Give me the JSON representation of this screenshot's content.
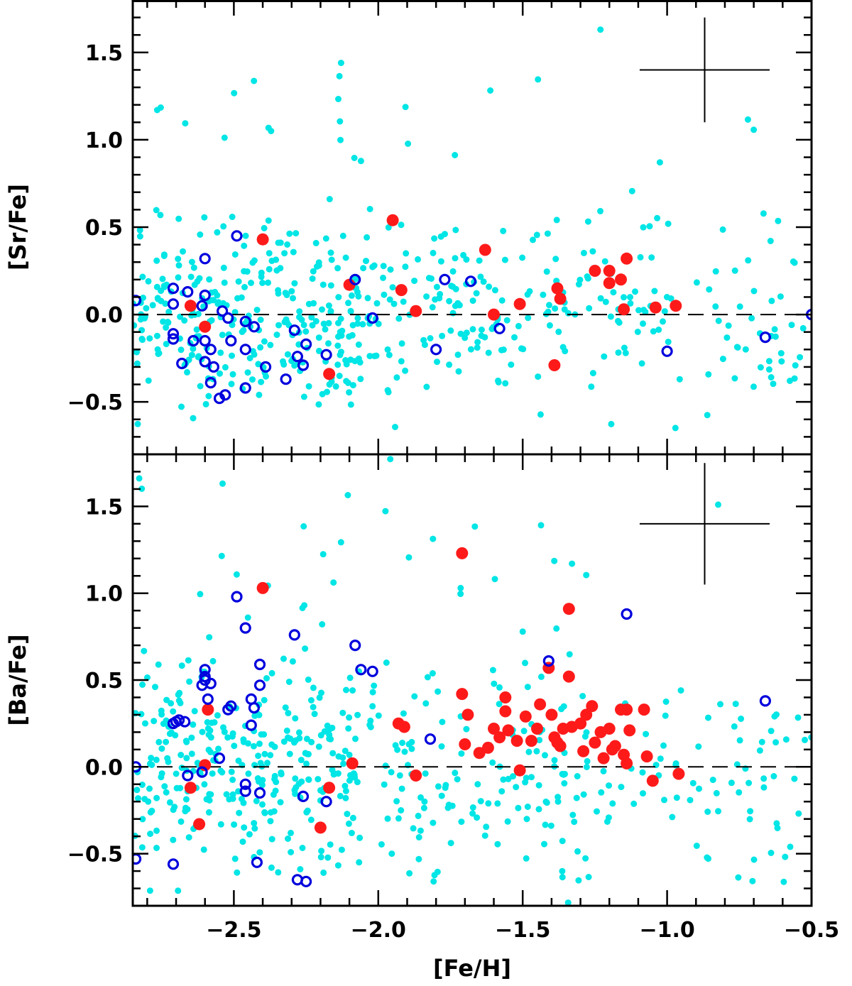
{
  "chart_data": {
    "type": "scatter",
    "colors": {
      "background": "#00e5e5",
      "red": "#ff1a1a",
      "blue": "#0000dd"
    },
    "xlabel": "[Fe/H]",
    "xlim": [
      -2.85,
      -0.5
    ],
    "xticks": [
      "−2.5",
      "−2.0",
      "−1.5",
      "−1.0",
      "−0.5"
    ],
    "xtick_values": [
      -2.5,
      -2.0,
      -1.5,
      -1.0,
      -0.5
    ],
    "panels": [
      {
        "ylabel": "[Sr/Fe]",
        "ylim": [
          -0.8,
          1.8
        ],
        "yticks": [
          "−0.5",
          "0.0",
          "0.5",
          "1.0",
          "1.5"
        ],
        "ytick_values": [
          -0.5,
          0.0,
          0.5,
          1.0,
          1.5
        ],
        "errorbar": {
          "x": -0.87,
          "y": 1.4,
          "xerr": 0.225,
          "yerr": 0.3
        },
        "series": [
          {
            "marker": "filled-red",
            "points": [
              [
                -2.65,
                0.05
              ],
              [
                -2.6,
                -0.07
              ],
              [
                -2.4,
                0.43
              ],
              [
                -2.17,
                -0.34
              ],
              [
                -2.1,
                0.17
              ],
              [
                -1.95,
                0.54
              ],
              [
                -1.92,
                0.14
              ],
              [
                -1.87,
                0.02
              ],
              [
                -1.63,
                0.37
              ],
              [
                -1.6,
                0.0
              ],
              [
                -1.51,
                0.06
              ],
              [
                -1.39,
                -0.29
              ],
              [
                -1.38,
                0.15
              ],
              [
                -1.37,
                0.09
              ],
              [
                -1.25,
                0.25
              ],
              [
                -1.2,
                0.25
              ],
              [
                -1.2,
                0.18
              ],
              [
                -1.16,
                0.2
              ],
              [
                -1.14,
                0.32
              ],
              [
                -1.15,
                0.03
              ],
              [
                -1.04,
                0.04
              ],
              [
                -0.97,
                0.05
              ]
            ]
          },
          {
            "marker": "open-blue",
            "points": [
              [
                -2.84,
                0.08
              ],
              [
                -2.71,
                0.15
              ],
              [
                -2.71,
                0.06
              ],
              [
                -2.71,
                -0.11
              ],
              [
                -2.71,
                -0.14
              ],
              [
                -2.68,
                -0.28
              ],
              [
                -2.66,
                0.13
              ],
              [
                -2.64,
                -0.15
              ],
              [
                -2.61,
                0.05
              ],
              [
                -2.6,
                0.32
              ],
              [
                -2.6,
                0.11
              ],
              [
                -2.6,
                -0.15
              ],
              [
                -2.6,
                -0.27
              ],
              [
                -2.58,
                -0.39
              ],
              [
                -2.58,
                -0.2
              ],
              [
                -2.57,
                -0.3
              ],
              [
                -2.55,
                -0.48
              ],
              [
                -2.54,
                0.02
              ],
              [
                -2.53,
                -0.46
              ],
              [
                -2.52,
                -0.02
              ],
              [
                -2.51,
                -0.15
              ],
              [
                -2.49,
                0.45
              ],
              [
                -2.46,
                -0.04
              ],
              [
                -2.46,
                -0.2
              ],
              [
                -2.46,
                -0.42
              ],
              [
                -2.43,
                -0.07
              ],
              [
                -2.39,
                -0.3
              ],
              [
                -2.32,
                -0.37
              ],
              [
                -2.29,
                -0.09
              ],
              [
                -2.28,
                -0.24
              ],
              [
                -2.26,
                -0.29
              ],
              [
                -2.25,
                -0.17
              ],
              [
                -2.18,
                -0.23
              ],
              [
                -2.08,
                0.2
              ],
              [
                -2.02,
                -0.02
              ],
              [
                -1.77,
                0.2
              ],
              [
                -1.8,
                -0.2
              ],
              [
                -1.68,
                0.19
              ],
              [
                -1.58,
                -0.08
              ],
              [
                -1.0,
                -0.21
              ],
              [
                -0.66,
                -0.13
              ],
              [
                -0.5,
                0.0
              ]
            ]
          }
        ]
      },
      {
        "ylabel": "[Ba/Fe]",
        "ylim": [
          -0.8,
          1.8
        ],
        "yticks": [
          "−0.5",
          "0.0",
          "0.5",
          "1.0",
          "1.5"
        ],
        "ytick_values": [
          -0.5,
          0.0,
          0.5,
          1.0,
          1.5
        ],
        "errorbar": {
          "x": -0.87,
          "y": 1.4,
          "xerr": 0.225,
          "yerr": 0.35
        },
        "series": [
          {
            "marker": "filled-red",
            "points": [
              [
                -2.65,
                -0.12
              ],
              [
                -2.62,
                -0.33
              ],
              [
                -2.6,
                0.01
              ],
              [
                -2.59,
                0.33
              ],
              [
                -2.4,
                1.03
              ],
              [
                -2.2,
                -0.35
              ],
              [
                -2.17,
                -0.12
              ],
              [
                -2.09,
                0.02
              ],
              [
                -1.93,
                0.25
              ],
              [
                -1.91,
                0.23
              ],
              [
                -1.87,
                -0.05
              ],
              [
                -1.71,
                1.23
              ],
              [
                -1.71,
                0.42
              ],
              [
                -1.7,
                0.13
              ],
              [
                -1.69,
                0.3
              ],
              [
                -1.65,
                0.08
              ],
              [
                -1.62,
                0.11
              ],
              [
                -1.6,
                0.22
              ],
              [
                -1.58,
                0.17
              ],
              [
                -1.56,
                0.4
              ],
              [
                -1.56,
                0.32
              ],
              [
                -1.55,
                0.21
              ],
              [
                -1.52,
                0.15
              ],
              [
                -1.51,
                -0.02
              ],
              [
                -1.49,
                0.29
              ],
              [
                -1.47,
                0.15
              ],
              [
                -1.45,
                0.22
              ],
              [
                -1.44,
                0.36
              ],
              [
                -1.41,
                0.57
              ],
              [
                -1.4,
                0.3
              ],
              [
                -1.39,
                0.17
              ],
              [
                -1.38,
                0.14
              ],
              [
                -1.37,
                0.12
              ],
              [
                -1.36,
                0.22
              ],
              [
                -1.34,
                0.91
              ],
              [
                -1.34,
                0.52
              ],
              [
                -1.33,
                0.23
              ],
              [
                -1.3,
                0.25
              ],
              [
                -1.29,
                0.09
              ],
              [
                -1.28,
                0.3
              ],
              [
                -1.26,
                0.35
              ],
              [
                -1.25,
                0.14
              ],
              [
                -1.23,
                0.2
              ],
              [
                -1.22,
                0.05
              ],
              [
                -1.2,
                0.22
              ],
              [
                -1.19,
                0.1
              ],
              [
                -1.18,
                0.12
              ],
              [
                -1.16,
                0.33
              ],
              [
                -1.15,
                0.07
              ],
              [
                -1.14,
                0.33
              ],
              [
                -1.14,
                0.02
              ],
              [
                -1.13,
                0.21
              ],
              [
                -1.08,
                0.33
              ],
              [
                -1.07,
                0.06
              ],
              [
                -1.05,
                -0.08
              ],
              [
                -0.96,
                -0.04
              ]
            ]
          },
          {
            "marker": "open-blue",
            "points": [
              [
                -2.84,
                0.0
              ],
              [
                -2.84,
                -0.53
              ],
              [
                -2.71,
                0.25
              ],
              [
                -2.71,
                -0.56
              ],
              [
                -2.7,
                0.26
              ],
              [
                -2.69,
                0.27
              ],
              [
                -2.67,
                0.26
              ],
              [
                -2.66,
                -0.05
              ],
              [
                -2.61,
                -0.03
              ],
              [
                -2.61,
                0.47
              ],
              [
                -2.6,
                0.56
              ],
              [
                -2.6,
                0.52
              ],
              [
                -2.6,
                0.5
              ],
              [
                -2.59,
                0.39
              ],
              [
                -2.58,
                0.48
              ],
              [
                -2.55,
                0.05
              ],
              [
                -2.52,
                0.33
              ],
              [
                -2.51,
                0.35
              ],
              [
                -2.49,
                0.98
              ],
              [
                -2.46,
                0.8
              ],
              [
                -2.46,
                -0.1
              ],
              [
                -2.46,
                -0.14
              ],
              [
                -2.44,
                0.39
              ],
              [
                -2.43,
                0.34
              ],
              [
                -2.44,
                0.24
              ],
              [
                -2.41,
                0.59
              ],
              [
                -2.41,
                0.47
              ],
              [
                -2.41,
                -0.15
              ],
              [
                -2.42,
                -0.55
              ],
              [
                -2.29,
                0.76
              ],
              [
                -2.28,
                -0.65
              ],
              [
                -2.26,
                -0.17
              ],
              [
                -2.25,
                -0.66
              ],
              [
                -2.18,
                -0.2
              ],
              [
                -2.08,
                0.7
              ],
              [
                -2.06,
                0.56
              ],
              [
                -2.02,
                0.55
              ],
              [
                -1.82,
                0.16
              ],
              [
                -1.41,
                0.61
              ],
              [
                -1.14,
                0.88
              ],
              [
                -0.66,
                0.38
              ]
            ]
          }
        ]
      }
    ]
  }
}
